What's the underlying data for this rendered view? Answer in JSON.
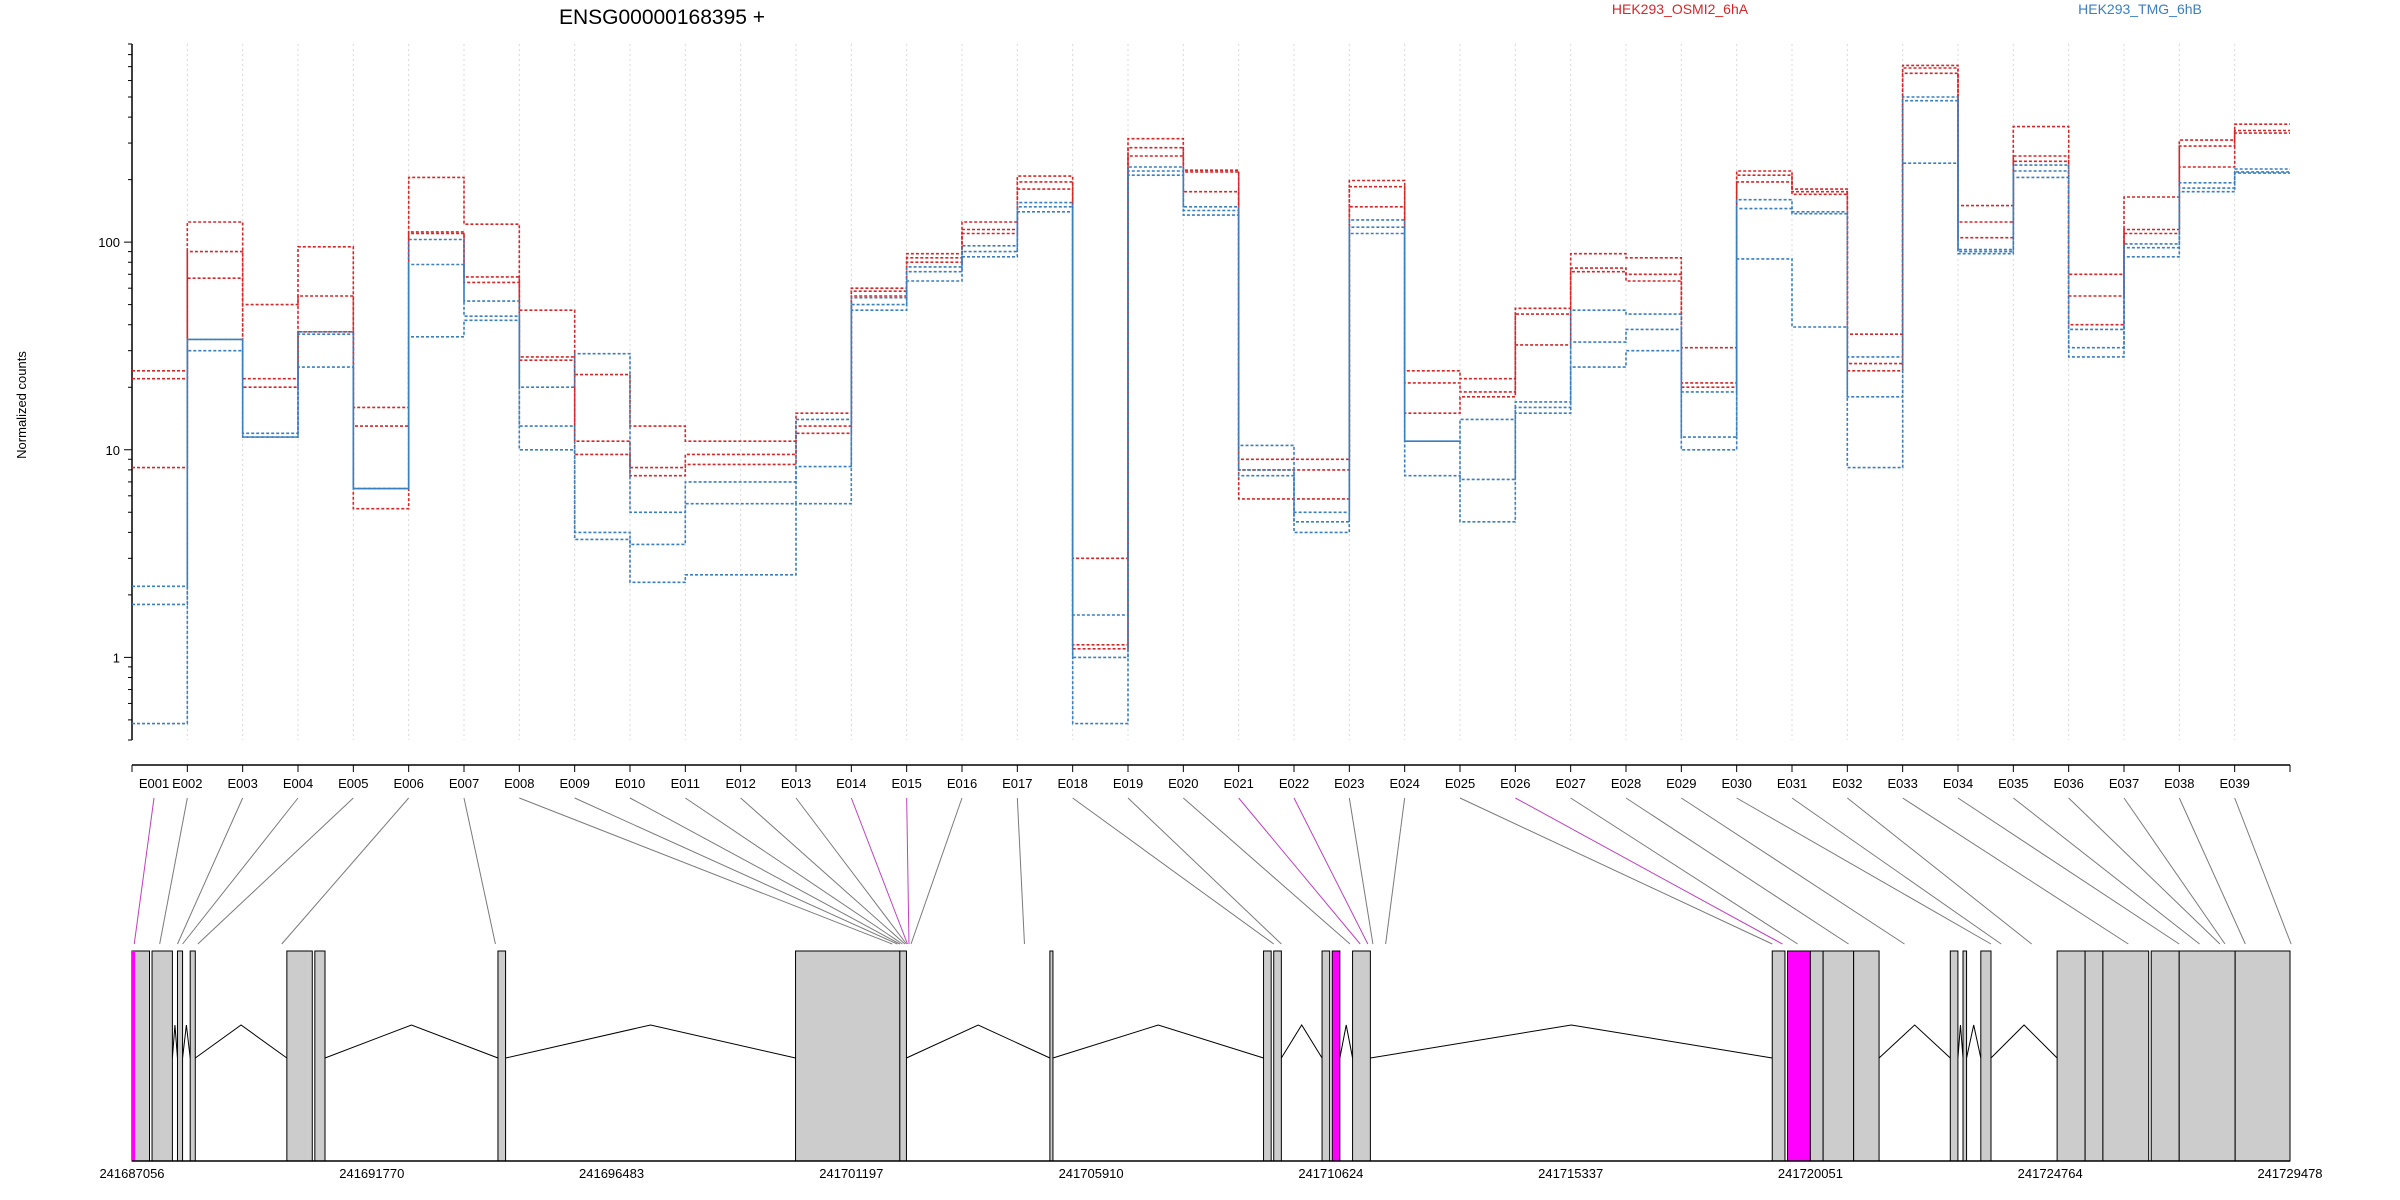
{
  "chart_data": {
    "type": "line",
    "title": "ENSG00000168395 +",
    "ylabel": "Normalized counts",
    "yscale": "log",
    "ylim": [
      0.4,
      900
    ],
    "yticks": [
      1,
      10,
      100
    ],
    "ytick_labels": [
      "1",
      "10",
      "100"
    ],
    "grid": "vertical dotted lines at each exon bin",
    "legend": [
      {
        "name": "HEK293_OSMI2_6hA",
        "color": "#d62728"
      },
      {
        "name": "HEK293_TMG_6hB",
        "color": "#3a7fbf"
      }
    ],
    "legend_placement": "top-right",
    "categories": [
      "E001",
      "E002",
      "E003",
      "E004",
      "E005",
      "E006",
      "E007",
      "E008",
      "E009",
      "E010",
      "E011",
      "E012",
      "E013",
      "E014",
      "E015",
      "E016",
      "E017",
      "E018",
      "E019",
      "E020",
      "E021",
      "E022",
      "E023",
      "E024",
      "E025",
      "E026",
      "E027",
      "E028",
      "E029",
      "E030",
      "E031",
      "E032",
      "E033",
      "E034",
      "E035",
      "E036",
      "E037",
      "E038",
      "E039"
    ],
    "series": [
      {
        "group": "HEK293_OSMI2_6hA",
        "color": "#d62728",
        "values": [
          24,
          125,
          50,
          95,
          16,
          205,
          122,
          47,
          23,
          13,
          11,
          11,
          15,
          60,
          88,
          125,
          208,
          3.0,
          315,
          222,
          9.0,
          9.0,
          198,
          24,
          22,
          48,
          88,
          84,
          31,
          220,
          180,
          36,
          710,
          150,
          360,
          70,
          165,
          310,
          370
        ]
      },
      {
        "group": "HEK293_OSMI2_6hA",
        "color": "#d62728",
        "values": [
          22,
          90,
          22,
          55,
          13,
          112,
          68,
          28,
          11,
          8.2,
          9.5,
          9.5,
          13,
          58,
          84,
          115,
          195,
          1.15,
          285,
          218,
          8.0,
          8.0,
          185,
          21,
          19,
          45,
          75,
          70,
          21,
          210,
          175,
          26,
          690,
          125,
          260,
          55,
          115,
          290,
          345
        ]
      },
      {
        "group": "HEK293_OSMI2_6hA",
        "color": "#d62728",
        "values": [
          8.2,
          67,
          20,
          37,
          5.2,
          110,
          64,
          27,
          9.5,
          7.5,
          8.5,
          8.5,
          12,
          55,
          80,
          110,
          180,
          1.1,
          260,
          175,
          5.8,
          5.8,
          148,
          15,
          18,
          32,
          72,
          65,
          20,
          195,
          170,
          24,
          650,
          105,
          245,
          40,
          110,
          230,
          335
        ]
      },
      {
        "group": "HEK293_TMG_6hB",
        "color": "#3a7fbf",
        "values": [
          2.2,
          34,
          12,
          37,
          6.5,
          103,
          52,
          20,
          29,
          5.0,
          7.0,
          7.0,
          14,
          54,
          76,
          96,
          155,
          1.6,
          230,
          148,
          10.5,
          5.0,
          128,
          11,
          7.2,
          17,
          47,
          45,
          19,
          160,
          140,
          28,
          500,
          92,
          235,
          38,
          98,
          193,
          225
        ]
      },
      {
        "group": "HEK293_TMG_6hB",
        "color": "#3a7fbf",
        "values": [
          1.8,
          30,
          11.5,
          25,
          6.5,
          78,
          44,
          13,
          4.0,
          3.5,
          5.5,
          5.5,
          8.3,
          50,
          72,
          90,
          148,
          1.0,
          220,
          142,
          8.0,
          4.5,
          118,
          11,
          14,
          16,
          33,
          38,
          11.5,
          145,
          137,
          18,
          480,
          90,
          220,
          31,
          94,
          182,
          218
        ]
      },
      {
        "group": "HEK293_TMG_6hB",
        "color": "#3a7fbf",
        "values": [
          0.48,
          34,
          11.5,
          36,
          6.5,
          35,
          42,
          10,
          3.7,
          2.3,
          2.5,
          2.5,
          5.5,
          47,
          65,
          85,
          140,
          0.48,
          210,
          135,
          7.5,
          4.0,
          110,
          7.5,
          4.5,
          15,
          25,
          30,
          10,
          83,
          39,
          8.2,
          240,
          88,
          205,
          28,
          85,
          175,
          215
        ]
      }
    ]
  },
  "legend": {
    "series_a": "HEK293_OSMI2_6hA",
    "series_b": "HEK293_TMG_6hB"
  },
  "exon_labels": [
    "E001",
    "E002",
    "E003",
    "E004",
    "E005",
    "E006",
    "E007",
    "E008",
    "E009",
    "E010",
    "E011",
    "E012",
    "E013",
    "E014",
    "E015",
    "E016",
    "E017",
    "E018",
    "E019",
    "E020",
    "E021",
    "E022",
    "E023",
    "E024",
    "E025",
    "E026",
    "E027",
    "E028",
    "E029",
    "E030",
    "E031",
    "E032",
    "E033",
    "E034",
    "E035",
    "E036",
    "E037",
    "E038",
    "E039"
  ],
  "gene_model": {
    "coord_start": 241687056,
    "coord_end": 241729478,
    "coordinate_labels": [
      "241687056",
      "241691770",
      "241696483",
      "241701197",
      "241705910",
      "241710624",
      "241715337",
      "241720051",
      "241724764",
      "241729478"
    ],
    "exon_fill": "#cccccc",
    "highlight_color": "#ff00ff",
    "highlighted_exons": [
      "E001",
      "E014",
      "E015",
      "E021",
      "E022",
      "E026"
    ],
    "exon_genomic_positions": [
      241687100,
      241687600,
      241687950,
      241688050,
      241688350,
      241690000,
      241694200,
      241702000,
      241702100,
      241702150,
      241702200,
      241702250,
      241702280,
      241702300,
      241702330,
      241702370,
      241704600,
      241709500,
      241709650,
      241711000,
      241711200,
      241711350,
      241711450,
      241711700,
      241719300,
      241719500,
      241719800,
      241720800,
      241721900,
      241723600,
      241723800,
      241724400,
      241726300,
      241727300,
      241727700,
      241728100,
      241728200,
      241728600,
      241729500
    ]
  }
}
